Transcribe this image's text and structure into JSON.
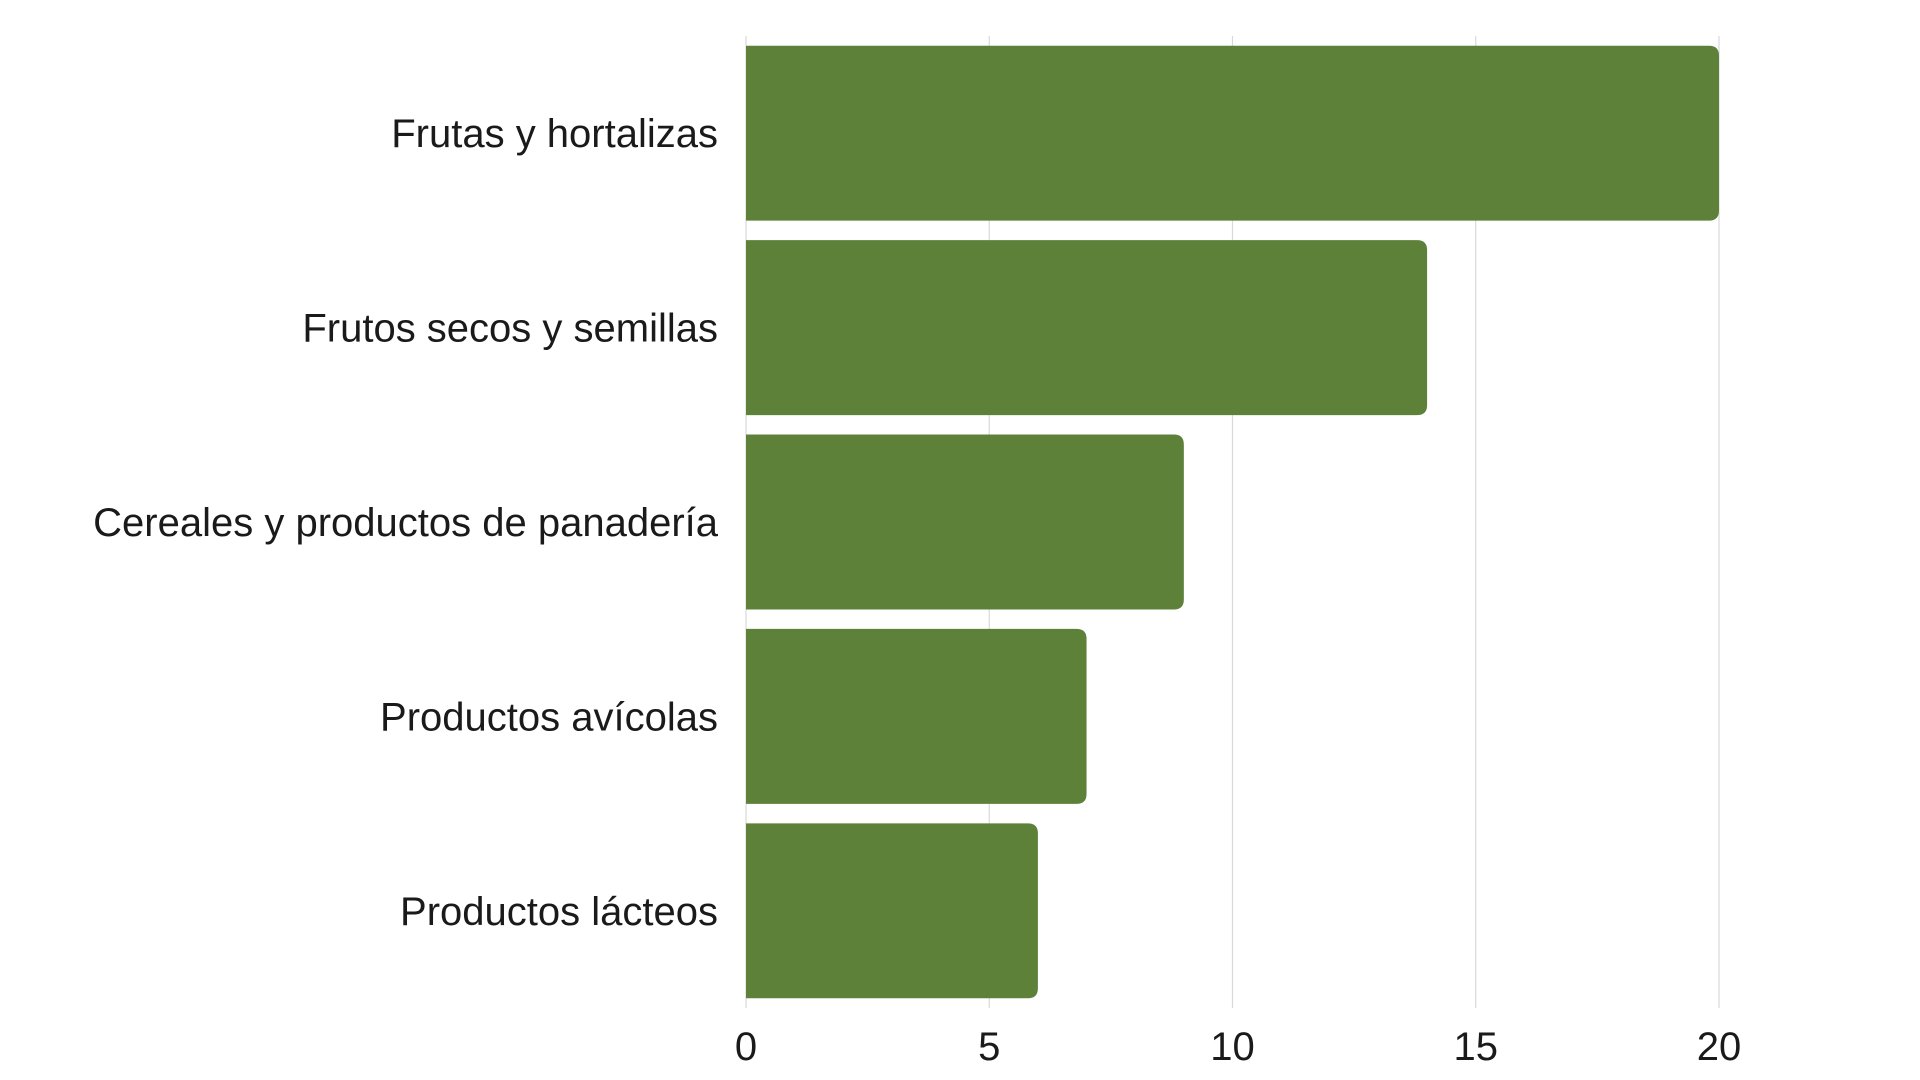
{
  "chart_data": {
    "type": "bar",
    "orientation": "horizontal",
    "categories": [
      "Frutas y hortalizas",
      "Frutos secos y semillas",
      "Cereales y productos de panadería",
      "Productos avícolas",
      "Productos lácteos"
    ],
    "values": [
      20,
      14,
      9,
      7,
      6
    ],
    "xlim": [
      0,
      20
    ],
    "xticks": [
      "0",
      "5",
      "10",
      "15",
      "20"
    ],
    "grid": true,
    "legend": "none",
    "bar_color": "#5e813a"
  }
}
